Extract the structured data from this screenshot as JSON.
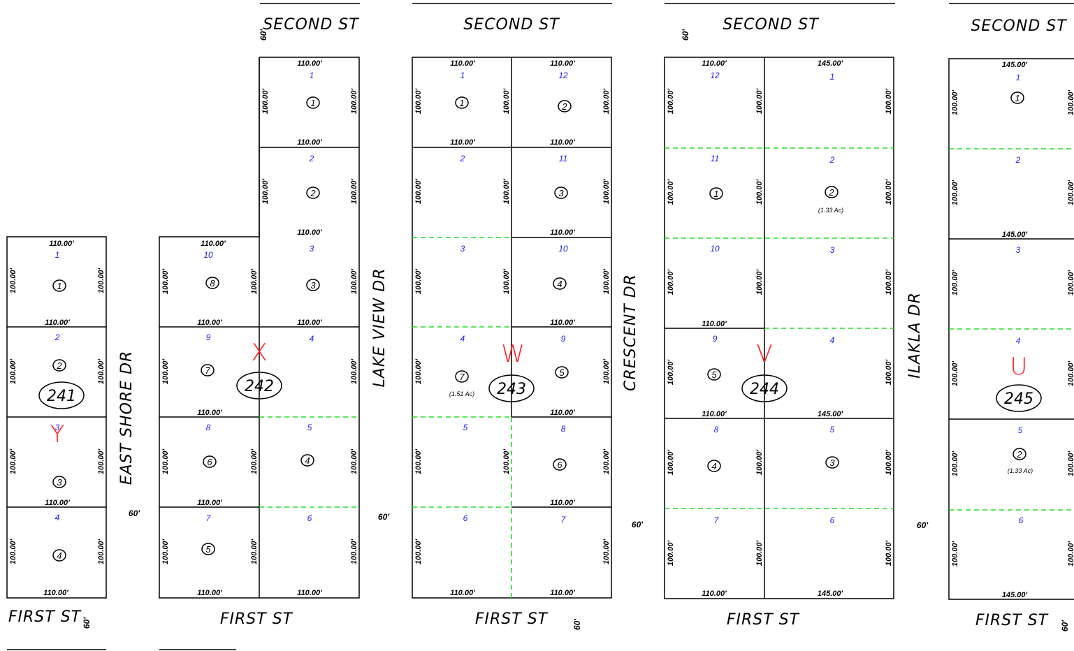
{
  "streets": {
    "second_st": "SECOND ST",
    "first_st": "FIRST ST",
    "east_shore_dr": "EAST SHORE DR",
    "lake_view_dr": "LAKE VIEW DR",
    "crescent_dr": "CRESCENT DR",
    "ilakla_dr": "ILAKLA DR"
  },
  "street_width": "60'",
  "dims": {
    "d110": "110.00'",
    "d100": "100.00'",
    "d145": "145.00'"
  },
  "lot_numbers": [
    "1",
    "2",
    "3",
    "4",
    "5",
    "6",
    "7",
    "8",
    "9",
    "10",
    "11",
    "12"
  ],
  "parcels": [
    "1",
    "2",
    "3",
    "4",
    "5",
    "6",
    "7",
    "8"
  ],
  "acreage": {
    "a151": "(1.51 Ac)",
    "a133": "(1.33 Ac)"
  },
  "blocks": {
    "b241": "241",
    "b242": "242",
    "b243": "243",
    "b244": "244",
    "b245": "245"
  },
  "block_letters": {
    "y": "Y",
    "x": "X",
    "w": "W",
    "v": "V",
    "u": "U"
  },
  "colors": {
    "lines": "#000000",
    "lot_numbers": "#1c1cff",
    "block_letters": "#ff2020",
    "lot_split_dashes": "#22dd22"
  }
}
